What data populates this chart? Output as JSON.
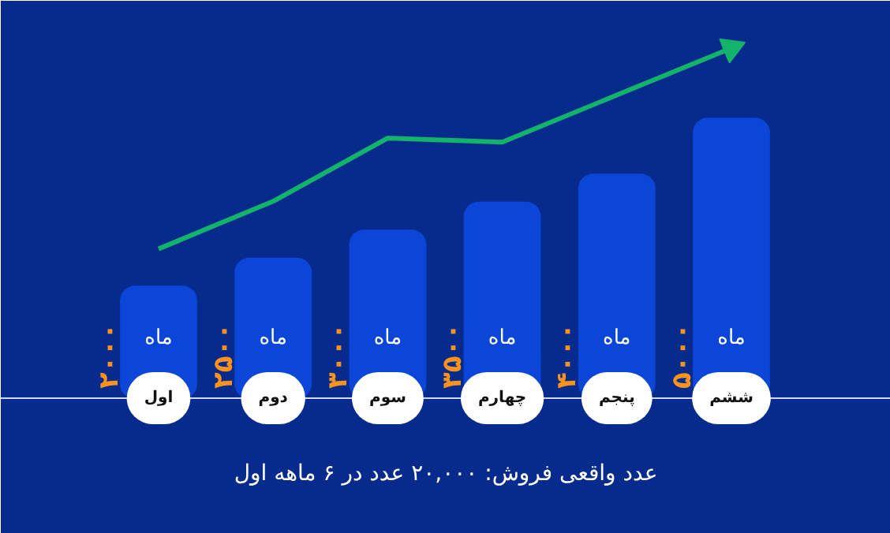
{
  "chart_data": {
    "type": "bar",
    "categories": [
      "اول",
      "دوم",
      "سوم",
      "چهارم",
      "پنجم",
      "ششم"
    ],
    "values": [
      2000,
      2500,
      3000,
      3500,
      4000,
      5000
    ],
    "value_labels": [
      "۲۰۰۰",
      "۲۵۰۰",
      "۳۰۰۰",
      "۳۵۰۰",
      "۴۰۰۰",
      "۵۰۰۰"
    ],
    "color": "#0b46d8",
    "series": [
      {
        "type": "line",
        "color": "#13b36b",
        "values": [
          2670,
          3520,
          4650,
          4580,
          5420,
          6260
        ]
      }
    ],
    "annotations": [
      "ماه",
      "ماه",
      "ماه",
      "ماه",
      "ماه",
      "ماه",
      "عدد واقعی فروش: ۲۰,۰۰۰ عدد در ۶ ماهه اول"
    ]
  }
}
